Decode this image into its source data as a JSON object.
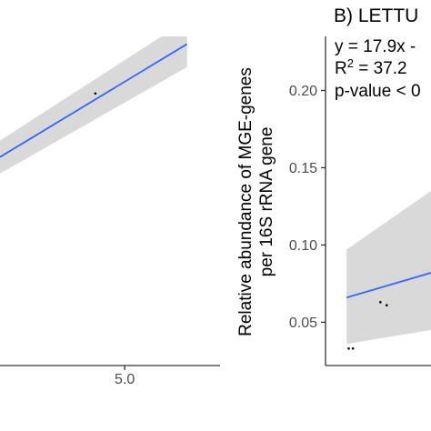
{
  "chart_data": [
    {
      "type": "scatter",
      "panel": "left",
      "title": "",
      "xlabel": "",
      "ylabel": "",
      "x_tick_labels": [
        "5.0"
      ],
      "x_ticks": [
        5.0
      ],
      "xlim": [
        3.3,
        6.3
      ],
      "ylim": [
        0.0,
        0.3
      ],
      "regression_line": {
        "x": [
          3.3,
          5.85
        ],
        "y": [
          0.19,
          0.293
        ]
      },
      "confidence_band": {
        "x": [
          3.3,
          5.85
        ],
        "upper": [
          0.205,
          0.315
        ],
        "lower": [
          0.175,
          0.272
        ]
      },
      "points": [
        {
          "x": 4.6,
          "y": 0.248
        }
      ],
      "colors": {
        "line": "#3366ff",
        "band": "#d9d9d9",
        "points": "#000000",
        "axis": "#333333"
      }
    },
    {
      "type": "scatter",
      "panel": "right",
      "title": "B) LETTU",
      "xlabel": "",
      "ylabel": "Relative abundance of MGE-genes\nper 16S rRNA gene",
      "ylabel_lines": [
        "Relative abundance of MGE-genes",
        "per 16S rRNA gene"
      ],
      "y_ticks": [
        0.05,
        0.1,
        0.15,
        0.2
      ],
      "y_tick_labels": [
        "0.05",
        "0.10",
        "0.15",
        "0.20"
      ],
      "xlim": [
        0.0,
        1.0
      ],
      "ylim": [
        0.022,
        0.235
      ],
      "annotation": {
        "equation": "y = 17.9x -",
        "r2_prefix": "R",
        "r2_sup": "2",
        "r2_rest": " = 37.2",
        "pvalue": "p-value < 0"
      },
      "regression_line": {
        "x": [
          0.2,
          1.0
        ],
        "y": [
          0.066,
          0.082
        ]
      },
      "confidence_band": {
        "x": [
          0.2,
          1.0
        ],
        "upper": [
          0.097,
          0.135
        ],
        "lower": [
          0.036,
          0.045
        ]
      },
      "points": [
        {
          "x": 0.22,
          "y": 0.033
        },
        {
          "x": 0.26,
          "y": 0.033
        },
        {
          "x": 0.52,
          "y": 0.063
        },
        {
          "x": 0.58,
          "y": 0.061
        }
      ],
      "colors": {
        "line": "#3366ff",
        "band": "#d9d9d9",
        "points": "#000000",
        "axis": "#333333"
      }
    }
  ]
}
